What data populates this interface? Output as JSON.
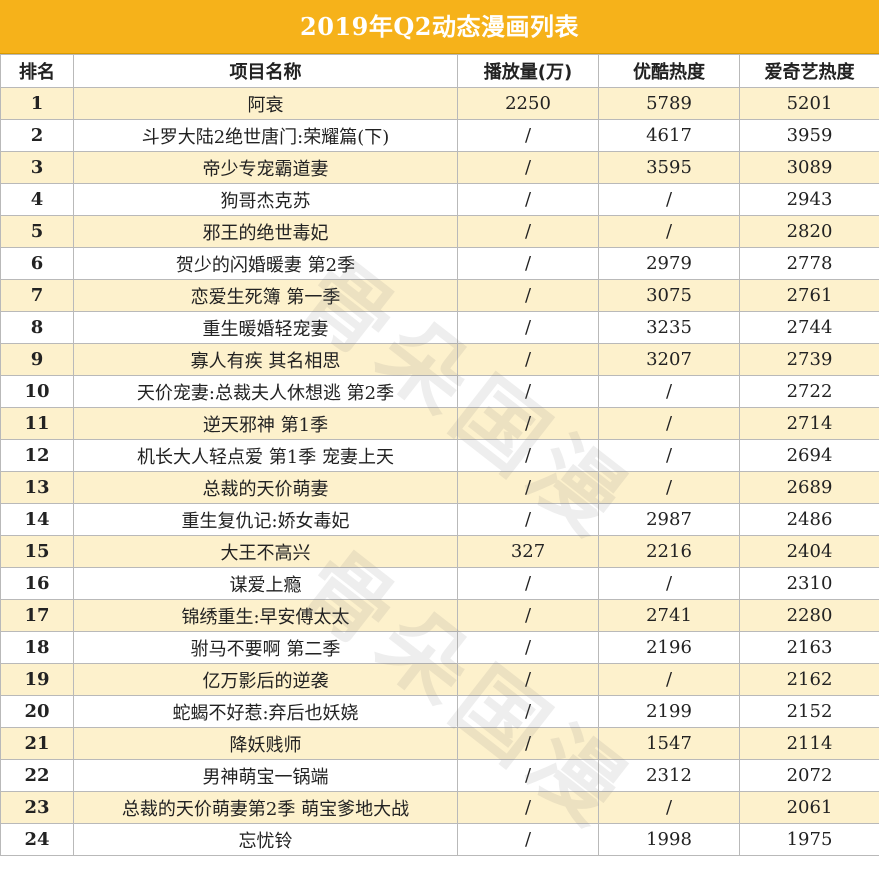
{
  "title": "2019年Q2动态漫画列表",
  "watermark": "骨朵国漫",
  "headers": [
    "排名",
    "项目名称",
    "播放量(万)",
    "优酷热度",
    "爱奇艺热度"
  ],
  "rows": [
    [
      "1",
      "阿衰",
      "2250",
      "5789",
      "5201"
    ],
    [
      "2",
      "斗罗大陆2绝世唐门:荣耀篇(下)",
      "/",
      "4617",
      "3959"
    ],
    [
      "3",
      "帝少专宠霸道妻",
      "/",
      "3595",
      "3089"
    ],
    [
      "4",
      "狗哥杰克苏",
      "/",
      "/",
      "2943"
    ],
    [
      "5",
      "邪王的绝世毒妃",
      "/",
      "/",
      "2820"
    ],
    [
      "6",
      "贺少的闪婚暖妻 第2季",
      "/",
      "2979",
      "2778"
    ],
    [
      "7",
      "恋爱生死簿 第一季",
      "/",
      "3075",
      "2761"
    ],
    [
      "8",
      "重生暖婚轻宠妻",
      "/",
      "3235",
      "2744"
    ],
    [
      "9",
      "寡人有疾 其名相思",
      "/",
      "3207",
      "2739"
    ],
    [
      "10",
      "天价宠妻:总裁夫人休想逃 第2季",
      "/",
      "/",
      "2722"
    ],
    [
      "11",
      "逆天邪神 第1季",
      "/",
      "/",
      "2714"
    ],
    [
      "12",
      "机长大人轻点爱 第1季 宠妻上天",
      "/",
      "/",
      "2694"
    ],
    [
      "13",
      "总裁的天价萌妻",
      "/",
      "/",
      "2689"
    ],
    [
      "14",
      "重生复仇记:娇女毒妃",
      "/",
      "2987",
      "2486"
    ],
    [
      "15",
      "大王不高兴",
      "327",
      "2216",
      "2404"
    ],
    [
      "16",
      "谋爱上瘾",
      "/",
      "/",
      "2310"
    ],
    [
      "17",
      "锦绣重生:早安傅太太",
      "/",
      "2741",
      "2280"
    ],
    [
      "18",
      "驸马不要啊 第二季",
      "/",
      "2196",
      "2163"
    ],
    [
      "19",
      "亿万影后的逆袭",
      "/",
      "/",
      "2162"
    ],
    [
      "20",
      "蛇蝎不好惹:弃后也妖娆",
      "/",
      "2199",
      "2152"
    ],
    [
      "21",
      "降妖贱师",
      "/",
      "1547",
      "2114"
    ],
    [
      "22",
      "男神萌宝一锅端",
      "/",
      "2312",
      "2072"
    ],
    [
      "23",
      "总裁的天价萌妻第2季 萌宝爹地大战",
      "/",
      "/",
      "2061"
    ],
    [
      "24",
      "忘忧铃",
      "/",
      "1998",
      "1975"
    ]
  ]
}
